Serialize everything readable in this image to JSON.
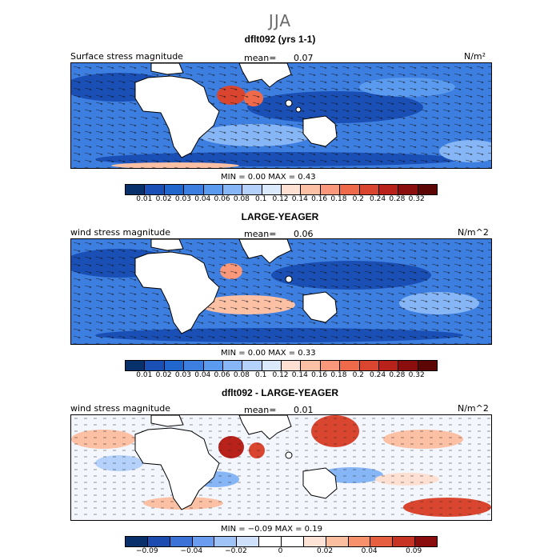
{
  "figure": {
    "season": "JJA"
  },
  "panels": [
    {
      "title": "dflt092 (yrs 1-1)",
      "variable": "Surface stress magnitude",
      "mean_label": "mean=",
      "mean_value": "0.07",
      "units": "N/m²",
      "stats": "MIN =    0.00  MAX =    0.43",
      "colorbar_ticks": [
        "0.01",
        "0.02",
        "0.03",
        "0.04",
        "0.06",
        "0.08",
        "0.1",
        "0.12",
        "0.14",
        "0.16",
        "0.18",
        "0.2",
        "0.24",
        "0.28",
        "0.32"
      ]
    },
    {
      "title": "LARGE-YEAGER",
      "variable": "wind stress magnitude",
      "mean_label": "mean=",
      "mean_value": "0.06",
      "units": "N/m^2",
      "stats": "MIN =    0.00  MAX =    0.33",
      "colorbar_ticks": [
        "0.01",
        "0.02",
        "0.03",
        "0.04",
        "0.06",
        "0.08",
        "0.1",
        "0.12",
        "0.14",
        "0.16",
        "0.18",
        "0.2",
        "0.24",
        "0.28",
        "0.32"
      ]
    },
    {
      "title": "dflt092 - LARGE-YEAGER",
      "variable": "wind stress magnitude",
      "mean_label": "mean=",
      "mean_value": "0.01",
      "units": "N/m^2",
      "stats": "MIN =  −0.09  MAX =    0.19",
      "colorbar_ticks": [
        "−0.09",
        "−0.04",
        "−0.02",
        "0",
        "0.02",
        "0.04",
        "0.09"
      ]
    }
  ],
  "colors": {
    "magnitude_scale": [
      "#08306b",
      "#1a4fb5",
      "#2166cc",
      "#3d7fe0",
      "#5b9bef",
      "#86b6f5",
      "#b3d1fa",
      "#dbe9fd",
      "#fde0d2",
      "#fcc0a5",
      "#f9987a",
      "#ef6a4a",
      "#d9452e",
      "#b8221b",
      "#8b0e0e",
      "#5c0606"
    ],
    "difference_scale": [
      "#08306b",
      "#1c4cb0",
      "#3a72d8",
      "#6a9cf0",
      "#9fc2f7",
      "#cfe0fb",
      "#ffffff",
      "#ffffff",
      "#fde3d5",
      "#fbbfa0",
      "#f6916c",
      "#e6603f",
      "#c83423",
      "#8b0e0e"
    ],
    "land": "#ffffff",
    "coast": "#000000"
  }
}
